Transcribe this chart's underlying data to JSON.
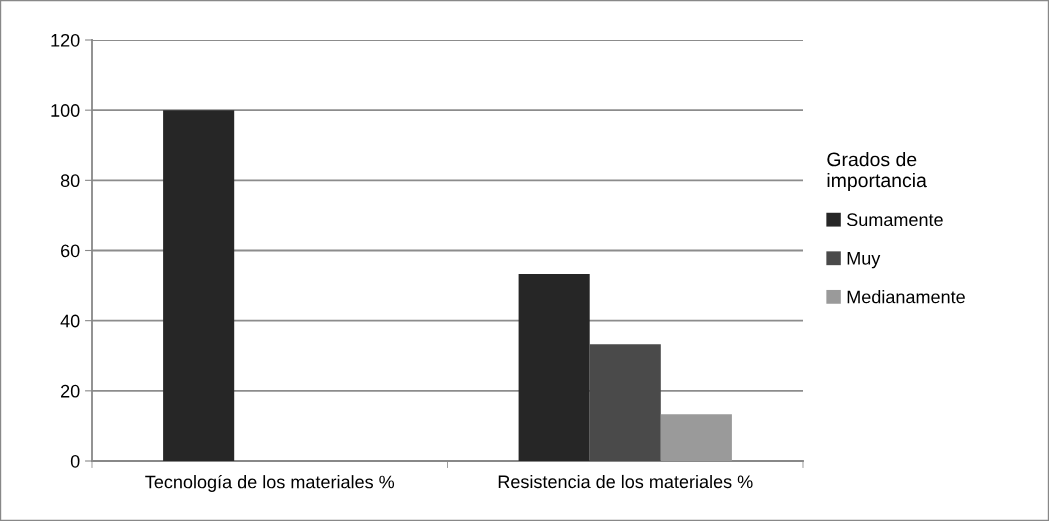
{
  "chart_data": {
    "type": "bar",
    "categories": [
      "Tecnología de los materiales %",
      "Resistencia de los materiales %"
    ],
    "legend_title": "Grados de\nimportancia",
    "series": [
      {
        "name": "Sumamente",
        "color": "#262626",
        "values": [
          100,
          53.3
        ]
      },
      {
        "name": "Muy",
        "color": "#4a4a4a",
        "values": [
          0,
          33.3
        ]
      },
      {
        "name": "Medianamente",
        "color": "#9a9a9a",
        "values": [
          0,
          13.3
        ]
      }
    ],
    "ylim": [
      0,
      120
    ],
    "yticks": [
      0,
      20,
      40,
      60,
      80,
      100,
      120
    ],
    "grid": "y",
    "legend": "right"
  }
}
